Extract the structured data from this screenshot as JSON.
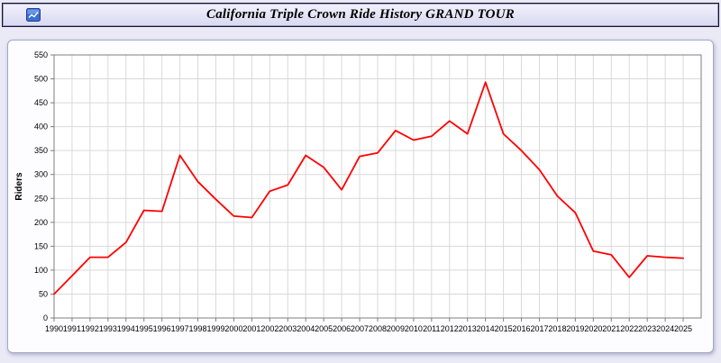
{
  "window": {
    "title": "California Triple Crown Ride History GRAND TOUR"
  },
  "icons": {
    "titlebar_icon": "chart-icon"
  },
  "colors": {
    "line": "#ff0000",
    "grid": "#d9d9d9",
    "axis": "#7f7f7f",
    "plot_bg": "#ffffff",
    "titlebar_bg": "#dfdff2",
    "page_bg": "#eaeaf6"
  },
  "chart_data": {
    "type": "line",
    "title": "California Triple Crown Ride History GRAND TOUR",
    "xlabel": "",
    "ylabel": "Riders",
    "ylim": [
      0,
      550
    ],
    "ytick_step": 50,
    "xlim": [
      1990,
      2026
    ],
    "grid": true,
    "legend": "none",
    "x": [
      1990,
      1991,
      1992,
      1993,
      1994,
      1995,
      1996,
      1997,
      1998,
      1999,
      2000,
      2001,
      2002,
      2003,
      2004,
      2005,
      2006,
      2007,
      2008,
      2009,
      2010,
      2011,
      2012,
      2013,
      2014,
      2015,
      2016,
      2017,
      2018,
      2019,
      2020,
      2021,
      2022,
      2023,
      2024,
      2025
    ],
    "series": [
      {
        "name": "Riders",
        "color": "#ff0000",
        "values": [
          50,
          88,
          127,
          127,
          158,
          225,
          223,
          340,
          285,
          248,
          213,
          210,
          265,
          278,
          340,
          315,
          268,
          338,
          345,
          392,
          372,
          380,
          412,
          385,
          493,
          385,
          350,
          310,
          255,
          220,
          140,
          132,
          85,
          130,
          127,
          125
        ]
      }
    ]
  }
}
